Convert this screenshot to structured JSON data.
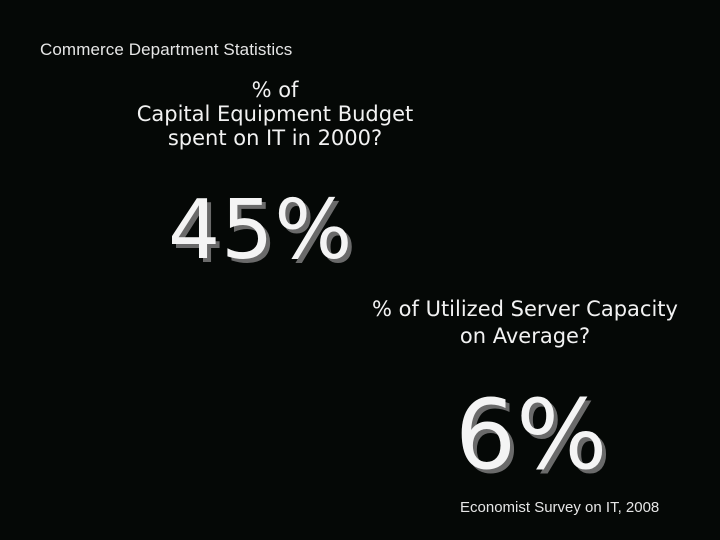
{
  "slide": {
    "heading": "Commerce Department Statistics",
    "question_1": {
      "lines": [
        "% of",
        "Capital Equipment Budget",
        "spent on IT in 2000?"
      ]
    },
    "answer_1": "45%",
    "question_2": {
      "lines": [
        "% of Utilized Server Capacity",
        "on Average?"
      ]
    },
    "answer_2": "6%",
    "source": "Economist Survey on IT, 2008"
  },
  "colors": {
    "background": "#050806",
    "text": "#f2f2f2",
    "number_shadow": "#6a6a6a"
  }
}
